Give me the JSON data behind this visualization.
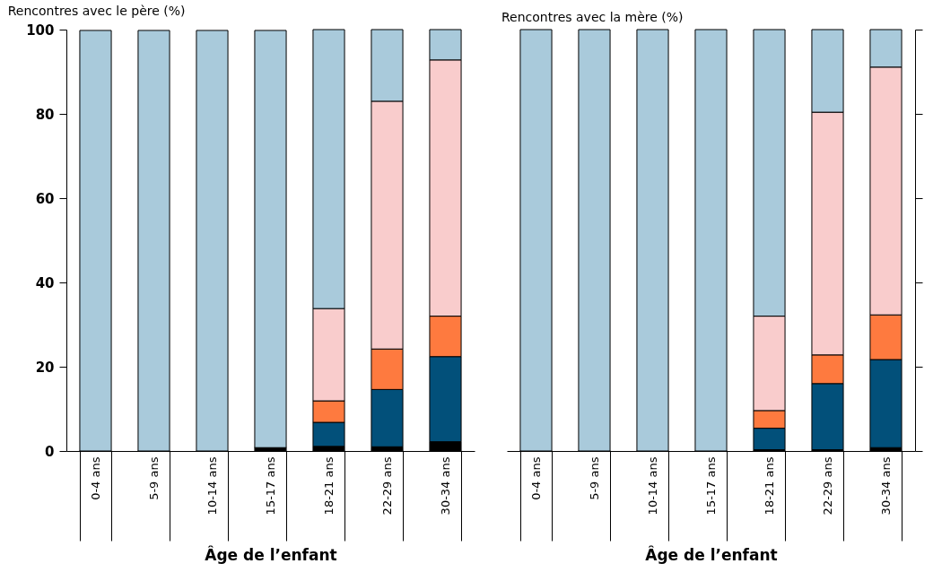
{
  "chart_data": [
    {
      "type": "bar",
      "stacked": true,
      "title": "Rencontres avec le père (%)",
      "xlabel": "Âge de l’enfant",
      "categories": [
        "0-4 ans",
        "5-9 ans",
        "10-14 ans",
        "15-17 ans",
        "18-21 ans",
        "22-29 ans",
        "30-34 ans"
      ],
      "ylim": [
        0,
        100
      ],
      "yticks": [
        0,
        20,
        40,
        60,
        80,
        100
      ],
      "grid": false,
      "series": [
        {
          "color": "#000000",
          "values": [
            null,
            null,
            null,
            0.8,
            1.1,
            1,
            2.2
          ]
        },
        {
          "color": "#02507a",
          "values": [
            0,
            0,
            0,
            0,
            5.7,
            13.6,
            20.2
          ]
        },
        {
          "color": "#fe7a3f",
          "values": [
            0,
            0,
            0,
            0,
            5.1,
            9.6,
            9.6
          ]
        },
        {
          "color": "#f9cccc",
          "values": [
            0,
            0,
            0,
            0,
            21.9,
            58.8,
            60.8
          ]
        },
        {
          "color": "#a9cadb",
          "values": [
            99.8,
            99.8,
            99.8,
            99,
            66.2,
            17,
            7.2
          ]
        }
      ]
    },
    {
      "type": "bar",
      "stacked": true,
      "title": "Rencontres avec la mère (%)",
      "xlabel": "Âge de l’enfant",
      "categories": [
        "0-4 ans",
        "5-9 ans",
        "10-14 ans",
        "15-17 ans",
        "18-21 ans",
        "22-29 ans",
        "30-34 ans"
      ],
      "ylim": [
        0,
        100
      ],
      "yticks": [
        0,
        20,
        40,
        60,
        80,
        100
      ],
      "grid": false,
      "tick_labels": "x",
      "series": [
        {
          "color": "#000000",
          "values": [
            0,
            0,
            0,
            0,
            0.3,
            0.3,
            0.8
          ]
        },
        {
          "color": "#02507a",
          "values": [
            0,
            0,
            0,
            0,
            5.1,
            15.7,
            20.9
          ]
        },
        {
          "color": "#fe7a3f",
          "values": [
            0,
            0,
            0,
            0,
            4.2,
            6.8,
            10.6
          ]
        },
        {
          "color": "#f9cccc",
          "values": [
            0,
            0,
            0,
            0,
            22.4,
            57.6,
            58.8
          ]
        },
        {
          "color": "#a9cadb",
          "values": [
            100,
            100,
            100,
            100,
            68,
            19.6,
            8.9
          ]
        }
      ]
    }
  ]
}
